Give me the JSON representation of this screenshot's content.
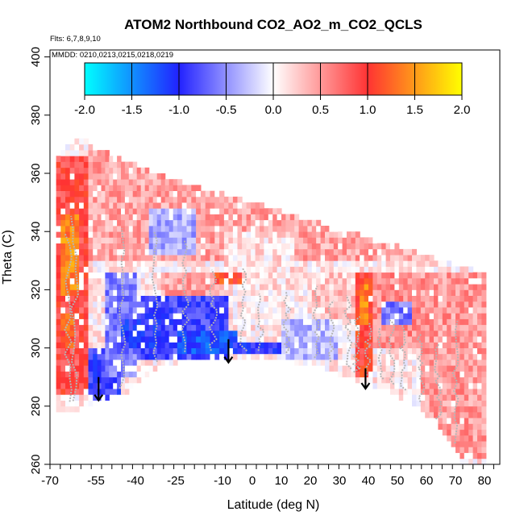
{
  "chart_data": {
    "type": "heatmap",
    "title": "ATOM2 Northbound CO2_AO2_m_CO2_QCLS",
    "flights_label": "Flts: 6,7,8,9,10",
    "dates_label": "MMDD: 0210,0213,0215,0218,0219",
    "xlabel": "Latitude (deg N)",
    "ylabel": "Theta (C)",
    "xlim": [
      -70,
      80
    ],
    "ylim": [
      260,
      400
    ],
    "x_tick_labels": [
      "-70",
      "-55",
      "-40",
      "-25",
      "-10",
      "0",
      "10",
      "20",
      "30",
      "40",
      "50",
      "60",
      "70",
      "80"
    ],
    "x_tick_values": [
      -70,
      -55,
      -40,
      -25,
      -10,
      0,
      10,
      20,
      30,
      40,
      50,
      60,
      70,
      80
    ],
    "y_ticks": [
      260,
      280,
      300,
      320,
      340,
      360,
      380,
      400
    ],
    "colorbar": {
      "range": [
        -2.0,
        2.0
      ],
      "tick_labels": [
        "-2.0",
        "-1.5",
        "-1.0",
        "-0.5",
        "0.0",
        "0.5",
        "1.0",
        "1.5",
        "2.0"
      ],
      "colors": [
        "#00ffff",
        "#2222ff",
        "#ffffff",
        "#ff3333",
        "#ffff00"
      ]
    },
    "domain_top": [
      [
        -68,
        365
      ],
      [
        -60,
        372
      ],
      [
        -55,
        368
      ],
      [
        -40,
        362
      ],
      [
        -20,
        355
      ],
      [
        0,
        349
      ],
      [
        20,
        343
      ],
      [
        40,
        337
      ],
      [
        60,
        331
      ],
      [
        72,
        327
      ],
      [
        80,
        325
      ]
    ],
    "domain_bottom": [
      [
        -68,
        279
      ],
      [
        -60,
        280
      ],
      [
        -50,
        284
      ],
      [
        -45,
        284
      ],
      [
        -40,
        289
      ],
      [
        -30,
        295
      ],
      [
        -20,
        297
      ],
      [
        -5,
        297
      ],
      [
        5,
        297
      ],
      [
        15,
        296
      ],
      [
        25,
        294
      ],
      [
        35,
        290
      ],
      [
        45,
        287
      ],
      [
        55,
        282
      ],
      [
        62,
        276
      ],
      [
        67,
        270
      ],
      [
        72,
        262
      ],
      [
        80,
        261
      ]
    ],
    "anomaly_layers": [
      {
        "lat_range": [
          -68,
          -58
        ],
        "theta_range": [
          285,
          365
        ],
        "value": 0.9
      },
      {
        "lat_range": [
          -66,
          -61
        ],
        "theta_range": [
          318,
          345
        ],
        "value": 1.4
      },
      {
        "lat_range": [
          -66,
          -62
        ],
        "theta_range": [
          300,
          312
        ],
        "value": 1.2
      },
      {
        "lat_range": [
          -58,
          80
        ],
        "theta_range": [
          330,
          372
        ],
        "value": 0.45
      },
      {
        "lat_range": [
          -35,
          -18
        ],
        "theta_range": [
          333,
          347
        ],
        "value": -0.4
      },
      {
        "lat_range": [
          -10,
          15
        ],
        "theta_range": [
          320,
          340
        ],
        "value": 0.15
      },
      {
        "lat_range": [
          -58,
          -45
        ],
        "theta_range": [
          283,
          300
        ],
        "value": -0.9
      },
      {
        "lat_range": [
          -52,
          -40
        ],
        "theta_range": [
          290,
          325
        ],
        "value": -0.6
      },
      {
        "lat_range": [
          -40,
          -8
        ],
        "theta_range": [
          297,
          318
        ],
        "value": -0.85
      },
      {
        "lat_range": [
          -45,
          -30
        ],
        "theta_range": [
          300,
          310
        ],
        "value": -1.0
      },
      {
        "lat_range": [
          -25,
          -5
        ],
        "theta_range": [
          299,
          306
        ],
        "value": -1.2
      },
      {
        "lat_range": [
          -6,
          12
        ],
        "theta_range": [
          298,
          302
        ],
        "value": -1.0
      },
      {
        "lat_range": [
          10,
          30
        ],
        "theta_range": [
          296,
          310
        ],
        "value": -0.3
      },
      {
        "lat_range": [
          -30,
          -10
        ],
        "theta_range": [
          318,
          326
        ],
        "value": 0.45
      },
      {
        "lat_range": [
          -12,
          -4
        ],
        "theta_range": [
          323,
          326
        ],
        "value": 1.1
      },
      {
        "lat_range": [
          35,
          42
        ],
        "theta_range": [
          290,
          325
        ],
        "value": 1.0
      },
      {
        "lat_range": [
          37,
          40
        ],
        "theta_range": [
          308,
          322
        ],
        "value": 1.4
      },
      {
        "lat_range": [
          42,
          58
        ],
        "theta_range": [
          300,
          326
        ],
        "value": 0.55
      },
      {
        "lat_range": [
          45,
          55
        ],
        "theta_range": [
          308,
          315
        ],
        "value": -0.6
      },
      {
        "lat_range": [
          58,
          80
        ],
        "theta_range": [
          262,
          325
        ],
        "value": 0.5
      },
      {
        "lat_range": [
          20,
          35
        ],
        "theta_range": [
          310,
          325
        ],
        "value": 0.3
      }
    ],
    "arrows": [
      {
        "lat": -54,
        "theta_from": 290,
        "theta_to": 282
      },
      {
        "lat": -8,
        "theta_from": 303,
        "theta_to": 295
      },
      {
        "lat": 39,
        "theta_from": 293,
        "theta_to": 286
      }
    ]
  }
}
